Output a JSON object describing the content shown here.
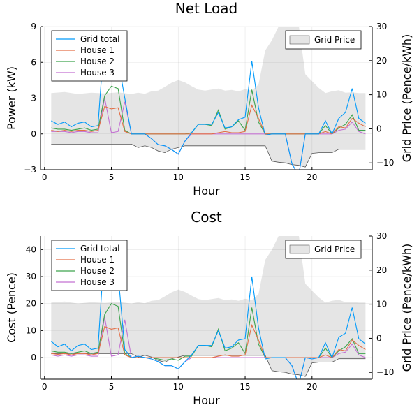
{
  "chart_data": [
    {
      "type": "line",
      "title": "Net Load",
      "xlabel": "Hour",
      "ylabel": "Power (kW)",
      "y2label": "Grid Price (Pence/kWh)",
      "xlim": [
        -0.3,
        24.5
      ],
      "ylim": [
        -3,
        9
      ],
      "y2lim": [
        -12,
        30
      ],
      "xticks": [
        0,
        5,
        10,
        15,
        20
      ],
      "yticks": [
        -3,
        0,
        3,
        6,
        9
      ],
      "y2ticks": [
        -10,
        0,
        10,
        20,
        30
      ],
      "grid": true,
      "legend_position": "top-left",
      "legend2_position": "top-right",
      "x": [
        0.5,
        1,
        1.5,
        2,
        2.5,
        3,
        3.5,
        4,
        4.5,
        5,
        5.5,
        6,
        6.5,
        7,
        7.5,
        8,
        8.5,
        9,
        9.5,
        10,
        10.5,
        11,
        11.5,
        12,
        12.5,
        13,
        13.5,
        14,
        14.5,
        15,
        15.5,
        16,
        16.5,
        17,
        17.5,
        18,
        18.5,
        19,
        19.5,
        20,
        20.5,
        21,
        21.5,
        22,
        22.5,
        23,
        23.5,
        24
      ],
      "series": [
        {
          "name": "Grid total",
          "color": "#009AFA",
          "values": [
            1.1,
            0.8,
            1.0,
            0.6,
            0.9,
            1.0,
            0.6,
            0.7,
            8.5,
            6.8,
            6.2,
            3.0,
            0,
            0,
            0,
            -0.4,
            -0.9,
            -1.0,
            -1.3,
            -1.7,
            -0.6,
            0.1,
            0.8,
            0.8,
            0.8,
            1.8,
            0.5,
            0.6,
            1.2,
            1.4,
            6.1,
            2.2,
            -0.1,
            0,
            0,
            0,
            -2.5,
            -3.5,
            0,
            0,
            0,
            1.1,
            0,
            1.3,
            1.8,
            3.8,
            1.3,
            0.9
          ]
        },
        {
          "name": "House 1",
          "color": "#E36F47",
          "values": [
            0.3,
            0.2,
            0.3,
            0.2,
            0.3,
            0.3,
            0.2,
            0.3,
            2.3,
            2.1,
            2.2,
            0.2,
            0,
            0,
            0,
            0,
            0,
            0,
            0,
            0,
            0,
            0,
            0,
            0,
            0,
            0.1,
            0.2,
            0.1,
            0.1,
            0.2,
            2.4,
            1.3,
            0,
            0,
            0,
            0,
            0,
            0,
            0,
            0,
            0,
            0.2,
            0,
            0.6,
            0.5,
            1.3,
            0.9,
            0.6
          ]
        },
        {
          "name": "House 2",
          "color": "#3EA44E",
          "values": [
            0.5,
            0.4,
            0.4,
            0.3,
            0.4,
            0.5,
            0.3,
            0.4,
            3.2,
            4.0,
            3.8,
            0.3,
            0,
            0,
            0,
            0,
            0,
            0,
            0,
            0,
            0,
            0.1,
            0.8,
            0.8,
            0.7,
            2.0,
            0.4,
            0.6,
            1.1,
            0.3,
            3.7,
            1.0,
            0,
            0,
            0,
            0,
            0,
            0,
            0,
            0,
            0,
            0.7,
            0,
            0.5,
            0.8,
            1.6,
            0.3,
            0.3
          ]
        },
        {
          "name": "House 3",
          "color": "#C371D2",
          "values": [
            0.2,
            0.2,
            0.2,
            0.1,
            0.2,
            0.2,
            0.1,
            0.1,
            3.0,
            0.1,
            0.2,
            2.7,
            0,
            0,
            0,
            -0.4,
            -0.9,
            -1.0,
            -1.3,
            -1.7,
            -0.6,
            0,
            0,
            0,
            0,
            0,
            0,
            0,
            0,
            0,
            0,
            0,
            0,
            0,
            0,
            0,
            -2.5,
            -3.5,
            0,
            0,
            0,
            0,
            0,
            0.3,
            0.4,
            1.0,
            0.2,
            0
          ]
        }
      ],
      "price_band": {
        "name": "Grid Price",
        "x": [
          0.5,
          1.5,
          2.5,
          3.5,
          4.5,
          5.5,
          6.5,
          7,
          7.5,
          8,
          8.5,
          9,
          9.5,
          10,
          10.5,
          11,
          11.5,
          12,
          12.5,
          13,
          13.5,
          14,
          14.5,
          15,
          15.5,
          16,
          16.5,
          17,
          17.5,
          18,
          18.5,
          19,
          19.5,
          20,
          20.5,
          21,
          21.5,
          22,
          22.5,
          23,
          23.5,
          24
        ],
        "upper": [
          10.5,
          10.8,
          10.2,
          10.6,
          10.4,
          10.7,
          10.2,
          10.6,
          10.3,
          11,
          11.2,
          12.3,
          13.5,
          14.3,
          13.6,
          12.5,
          11.5,
          11.2,
          11.5,
          11.8,
          11.2,
          11.4,
          11.0,
          11.6,
          11.2,
          13,
          23,
          26,
          30,
          32,
          31,
          30.5,
          16,
          14,
          12,
          10.5,
          11,
          11.3,
          10.6,
          10.7,
          10.5,
          10.5
        ],
        "lower": [
          -4.5,
          -4.5,
          -4.5,
          -4.5,
          -4.5,
          -4.5,
          -4.5,
          -5.5,
          -5,
          -5.5,
          -6.5,
          -7,
          -6,
          -5.5,
          -5,
          -5,
          -5,
          -5,
          -5,
          -5,
          -5,
          -5,
          -5,
          -5,
          -5,
          -5,
          -5,
          -9.5,
          -9.8,
          -10,
          -10.5,
          -10.7,
          -11.2,
          -7.2,
          -7,
          -7,
          -7,
          -6,
          -6,
          -6,
          -6,
          -6
        ]
      }
    },
    {
      "type": "line",
      "title": "Cost",
      "xlabel": "Hour",
      "ylabel": "Cost (Pence)",
      "y2label": "Grid Price (Pence/kWh)",
      "xlim": [
        -0.3,
        24.5
      ],
      "ylim": [
        -8,
        45
      ],
      "y2lim": [
        -12,
        30
      ],
      "xticks": [
        0,
        5,
        10,
        15,
        20
      ],
      "yticks": [
        0,
        10,
        20,
        30,
        40
      ],
      "y2ticks": [
        -10,
        0,
        10,
        20,
        30
      ],
      "grid": true,
      "legend_position": "top-left",
      "legend2_position": "top-right",
      "x": [
        0.5,
        1,
        1.5,
        2,
        2.5,
        3,
        3.5,
        4,
        4.5,
        5,
        5.5,
        6,
        6.5,
        7,
        7.5,
        8,
        8.5,
        9,
        9.5,
        10,
        10.5,
        11,
        11.5,
        12,
        12.5,
        13,
        13.5,
        14,
        14.5,
        15,
        15.5,
        16,
        16.5,
        17,
        17.5,
        18,
        18.5,
        19,
        19.5,
        20,
        20.5,
        21,
        21.5,
        22,
        22.5,
        23,
        23.5,
        24
      ],
      "series": [
        {
          "name": "Grid total",
          "color": "#009AFA",
          "values": [
            6,
            4,
            5,
            2.5,
            4.5,
            5,
            3,
            3.5,
            42,
            33,
            31,
            3,
            0,
            0.5,
            0,
            -0.5,
            -1.5,
            -3,
            -3,
            -4.2,
            -1.5,
            1,
            4.5,
            4.5,
            4.5,
            10,
            3.5,
            4,
            6.5,
            7,
            30,
            11,
            -0.5,
            0,
            0,
            0,
            -3,
            -10,
            0,
            -0.5,
            0,
            5.5,
            0,
            7.5,
            9,
            18.5,
            7,
            5
          ]
        },
        {
          "name": "House 1",
          "color": "#E36F47",
          "values": [
            1.5,
            1.2,
            1.5,
            1,
            1.5,
            1.5,
            1,
            1.5,
            11.5,
            10.5,
            11,
            1,
            0,
            0,
            0,
            0,
            0,
            0,
            0,
            0,
            0,
            0,
            0,
            0,
            0,
            0.5,
            1,
            0.5,
            0.5,
            1,
            12,
            6.5,
            0,
            0,
            0,
            0,
            0,
            0,
            0,
            0,
            0,
            1,
            0,
            3,
            2.5,
            6.5,
            4.5,
            3
          ]
        },
        {
          "name": "House 2",
          "color": "#3EA44E",
          "values": [
            2.5,
            2,
            2,
            1.5,
            2,
            2.5,
            1.5,
            2,
            16,
            20,
            19,
            1.5,
            0,
            0,
            0,
            0,
            -0.5,
            -1,
            -0.5,
            -1,
            0.5,
            0.5,
            4.5,
            4.5,
            4,
            10.5,
            2.5,
            3.5,
            5.5,
            1.5,
            18.5,
            5,
            0,
            0,
            0,
            0,
            0,
            0,
            0,
            0,
            0,
            3.5,
            0,
            2.5,
            4,
            7,
            1.5,
            1.5
          ]
        },
        {
          "name": "House 3",
          "color": "#C371D2",
          "values": [
            1,
            0.5,
            1,
            0.5,
            1,
            1,
            0.5,
            0.5,
            15,
            0.5,
            1,
            14,
            0,
            0.5,
            0,
            -0.5,
            -1.5,
            -3,
            -3,
            -4.2,
            -1.5,
            0,
            0,
            0,
            0,
            0,
            0,
            0,
            0,
            0,
            0,
            0,
            0,
            0,
            0,
            0,
            -3,
            -10,
            0,
            -0.5,
            0,
            0,
            0,
            1.5,
            2,
            5,
            1,
            0
          ]
        }
      ],
      "price_band": {
        "name": "Grid Price",
        "x": [
          0.5,
          1.5,
          2.5,
          3.5,
          4.5,
          5.5,
          6.5,
          7,
          7.5,
          8,
          8.5,
          9,
          9.5,
          10,
          10.5,
          11,
          11.5,
          12,
          12.5,
          13,
          13.5,
          14,
          14.5,
          15,
          15.5,
          16,
          16.5,
          17,
          17.5,
          18,
          18.5,
          19,
          19.5,
          20,
          20.5,
          21,
          21.5,
          22,
          22.5,
          23,
          23.5,
          24
        ],
        "upper": [
          10.5,
          10.8,
          10.2,
          10.6,
          10.4,
          10.7,
          10.2,
          10.6,
          10.3,
          11,
          11.2,
          12.3,
          13.5,
          14.3,
          13.6,
          12.5,
          11.5,
          11.2,
          11.5,
          11.8,
          11.2,
          11.4,
          11.0,
          11.6,
          11.2,
          13,
          23,
          26,
          30,
          32,
          31,
          30.5,
          16,
          14,
          12,
          10.5,
          11,
          11.3,
          10.6,
          10.7,
          10.5,
          10.5
        ],
        "lower": [
          -4.5,
          -4.5,
          -4.5,
          -4.5,
          -4.5,
          -4.5,
          -4.5,
          -5.5,
          -5,
          -5.5,
          -6.5,
          -7,
          -6,
          -5.5,
          -5,
          -5,
          -5,
          -5,
          -5,
          -5,
          -5,
          -5,
          -5,
          -5,
          -5,
          -5,
          -5,
          -9.5,
          -9.8,
          -10,
          -10.5,
          -10.7,
          -11.2,
          -7.2,
          -7,
          -7,
          -7,
          -6,
          -6,
          -6,
          -6,
          -6
        ]
      }
    }
  ]
}
